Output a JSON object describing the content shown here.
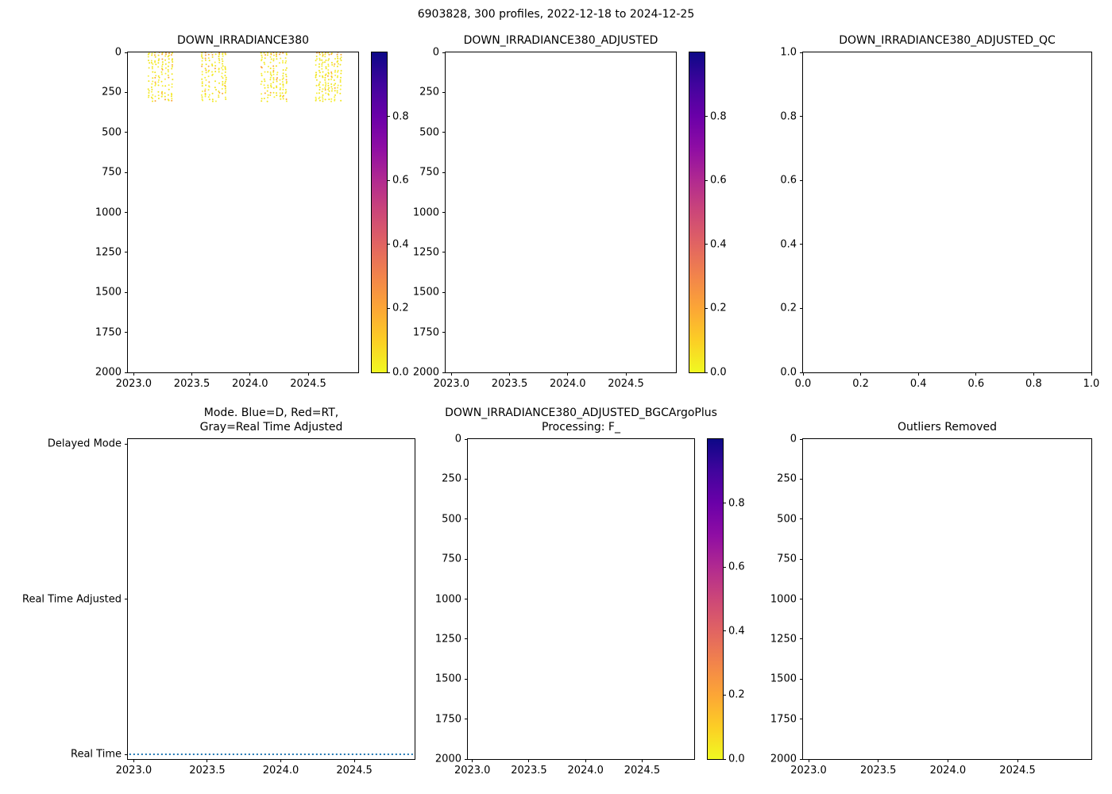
{
  "figure": {
    "suptitle": "6903828, 300 profiles, 2022-12-18 to 2024-12-25",
    "float_id": "6903828",
    "n_profiles": 300,
    "date_range": "2022-12-18 to 2024-12-25"
  },
  "colors": {
    "background": "#ffffff",
    "axis": "#000000",
    "text": "#000000",
    "scatter_yellow_main": "#f1e51d",
    "scatter_yellow_light": "#f7ef3a",
    "scatter_orange": "#fca636",
    "mode_line_blue": "#1f77b4",
    "colormap_name": "plasma_r",
    "colormap_stops_low_to_high": [
      "#f0f921",
      "#fcce25",
      "#fca636",
      "#f2844b",
      "#e16462",
      "#cc4778",
      "#b12a90",
      "#8f0da4",
      "#6a00a8",
      "#41049d",
      "#0d0887"
    ]
  },
  "chart_data": [
    {
      "id": "DOWN_IRRADIANCE380",
      "type": "scatter",
      "title": "DOWN_IRRADIANCE380",
      "title_lines": [
        "DOWN_IRRADIANCE380"
      ],
      "xlabel": "",
      "ylabel": "",
      "grid": false,
      "xlim": [
        2022.95,
        2024.93
      ],
      "x_ticks": [
        2023.0,
        2023.5,
        2024.0,
        2024.5
      ],
      "x_tick_labels": [
        "2023.0",
        "2023.5",
        "2024.0",
        "2024.5"
      ],
      "ylim": [
        0,
        2000
      ],
      "y_inverted": true,
      "y_ticks": [
        0,
        250,
        500,
        750,
        1000,
        1250,
        1500,
        1750,
        2000
      ],
      "y_tick_labels": [
        "0",
        "250",
        "500",
        "750",
        "1000",
        "1250",
        "1500",
        "1750",
        "2000"
      ],
      "colorbar": {
        "lim": [
          0.0,
          1.0
        ],
        "ticks": [
          0.0,
          0.2,
          0.4,
          0.6,
          0.8
        ],
        "tick_labels": [
          "0.0",
          "0.2",
          "0.4",
          "0.6",
          "0.8"
        ],
        "colormap": "plasma_r"
      },
      "data": {
        "description": "Near-zero irradiance values (yellow, approx 0.0-0.1) in the upper 0-310 m, in four observation periods; rest of panel empty",
        "clusters": [
          {
            "x_start": 2023.13,
            "x_end": 2023.33,
            "depth_start": 0,
            "depth_end": 310,
            "n_profiles": 8,
            "value_range": [
              0.0,
              0.1
            ]
          },
          {
            "x_start": 2023.59,
            "x_end": 2023.79,
            "depth_start": 0,
            "depth_end": 310,
            "n_profiles": 8,
            "value_range": [
              0.0,
              0.1
            ]
          },
          {
            "x_start": 2024.1,
            "x_end": 2024.31,
            "depth_start": 0,
            "depth_end": 310,
            "n_profiles": 9,
            "value_range": [
              0.0,
              0.1
            ]
          },
          {
            "x_start": 2024.57,
            "x_end": 2024.78,
            "depth_start": 0,
            "depth_end": 310,
            "n_profiles": 9,
            "value_range": [
              0.0,
              0.1
            ]
          }
        ]
      }
    },
    {
      "id": "DOWN_IRRADIANCE380_ADJUSTED",
      "type": "scatter",
      "title": "DOWN_IRRADIANCE380_ADJUSTED",
      "title_lines": [
        "DOWN_IRRADIANCE380_ADJUSTED"
      ],
      "xlabel": "",
      "ylabel": "",
      "grid": false,
      "xlim": [
        2022.95,
        2024.93
      ],
      "x_ticks": [
        2023.0,
        2023.5,
        2024.0,
        2024.5
      ],
      "x_tick_labels": [
        "2023.0",
        "2023.5",
        "2024.0",
        "2024.5"
      ],
      "ylim": [
        0,
        2000
      ],
      "y_inverted": true,
      "y_ticks": [
        0,
        250,
        500,
        750,
        1000,
        1250,
        1500,
        1750,
        2000
      ],
      "y_tick_labels": [
        "0",
        "250",
        "500",
        "750",
        "1000",
        "1250",
        "1500",
        "1750",
        "2000"
      ],
      "colorbar": {
        "lim": [
          0.0,
          1.0
        ],
        "ticks": [
          0.0,
          0.2,
          0.4,
          0.6,
          0.8
        ],
        "tick_labels": [
          "0.0",
          "0.2",
          "0.4",
          "0.6",
          "0.8"
        ],
        "colormap": "plasma_r"
      },
      "data": {
        "description": "No adjusted data plotted (empty axes)",
        "clusters": []
      }
    },
    {
      "id": "DOWN_IRRADIANCE380_ADJUSTED_QC",
      "type": "scatter",
      "title": "DOWN_IRRADIANCE380_ADJUSTED_QC",
      "title_lines": [
        "DOWN_IRRADIANCE380_ADJUSTED_QC"
      ],
      "xlabel": "",
      "ylabel": "",
      "grid": false,
      "xlim": [
        0.0,
        1.0
      ],
      "x_ticks": [
        0.0,
        0.2,
        0.4,
        0.6,
        0.8,
        1.0
      ],
      "x_tick_labels": [
        "0.0",
        "0.2",
        "0.4",
        "0.6",
        "0.8",
        "1.0"
      ],
      "ylim": [
        0.0,
        1.0
      ],
      "y_inverted": false,
      "y_ticks": [
        0.0,
        0.2,
        0.4,
        0.6,
        0.8,
        1.0
      ],
      "y_tick_labels": [
        "0.0",
        "0.2",
        "0.4",
        "0.6",
        "0.8",
        "1.0"
      ],
      "colorbar": null,
      "data": {
        "description": "No QC data plotted (empty axes, default 0-1 limits)",
        "clusters": []
      }
    },
    {
      "id": "MODE",
      "type": "line",
      "title": "Mode. Blue=D, Red=RT,\nGray=Real Time Adjusted",
      "title_lines": [
        "Mode. Blue=D, Red=RT,",
        "Gray=Real Time Adjusted"
      ],
      "xlabel": "",
      "ylabel": "",
      "grid": false,
      "xlim": [
        2022.96,
        2024.91
      ],
      "x_ticks": [
        2023.0,
        2023.5,
        2024.0,
        2024.5
      ],
      "x_tick_labels": [
        "2023.0",
        "2023.5",
        "2024.0",
        "2024.5"
      ],
      "y_categories": [
        "Delayed Mode",
        "Real Time Adjusted",
        "Real Time"
      ],
      "colorbar": null,
      "data": {
        "description": "All 300 profiles are in Real Time mode: dotted blue line along the Real Time category for the full time range",
        "series": [
          {
            "name": "profile-mode",
            "color_key": "mode_line_blue",
            "style": "dotted",
            "category": "Real Time",
            "x_start": 2022.97,
            "x_end": 2024.9
          }
        ]
      }
    },
    {
      "id": "DOWN_IRRADIANCE380_ADJUSTED_BGCArgoPlus",
      "type": "scatter",
      "title": "DOWN_IRRADIANCE380_ADJUSTED_BGCArgoPlus\nProcessing: F_",
      "title_lines": [
        "DOWN_IRRADIANCE380_ADJUSTED_BGCArgoPlus",
        "Processing: F_"
      ],
      "xlabel": "",
      "ylabel": "",
      "grid": false,
      "xlim": [
        2022.96,
        2024.96
      ],
      "x_ticks": [
        2023.0,
        2023.5,
        2024.0,
        2024.5
      ],
      "x_tick_labels": [
        "2023.0",
        "2023.5",
        "2024.0",
        "2024.5"
      ],
      "ylim": [
        0,
        2000
      ],
      "y_inverted": true,
      "y_ticks": [
        0,
        250,
        500,
        750,
        1000,
        1250,
        1500,
        1750,
        2000
      ],
      "y_tick_labels": [
        "0",
        "250",
        "500",
        "750",
        "1000",
        "1250",
        "1500",
        "1750",
        "2000"
      ],
      "colorbar": {
        "lim": [
          0.0,
          1.0
        ],
        "ticks": [
          0.0,
          0.2,
          0.4,
          0.6,
          0.8
        ],
        "tick_labels": [
          "0.0",
          "0.2",
          "0.4",
          "0.6",
          "0.8"
        ],
        "colormap": "plasma_r"
      },
      "data": {
        "description": "No BGCArgoPlus-processed data plotted (empty axes)",
        "clusters": []
      }
    },
    {
      "id": "OUTLIERS_REMOVED",
      "type": "scatter",
      "title": "Outliers Removed",
      "title_lines": [
        "Outliers Removed"
      ],
      "xlabel": "",
      "ylabel": "",
      "grid": false,
      "xlim": [
        2022.96,
        2025.03
      ],
      "x_ticks": [
        2023.0,
        2023.5,
        2024.0,
        2024.5
      ],
      "x_tick_labels": [
        "2023.0",
        "2023.5",
        "2024.0",
        "2024.5"
      ],
      "ylim": [
        0,
        2000
      ],
      "y_inverted": true,
      "y_ticks": [
        0,
        250,
        500,
        750,
        1000,
        1250,
        1500,
        1750,
        2000
      ],
      "y_tick_labels": [
        "0",
        "250",
        "500",
        "750",
        "1000",
        "1250",
        "1500",
        "1750",
        "2000"
      ],
      "colorbar": null,
      "data": {
        "description": "No outlier-removed data plotted (empty axes)",
        "clusters": []
      }
    }
  ]
}
